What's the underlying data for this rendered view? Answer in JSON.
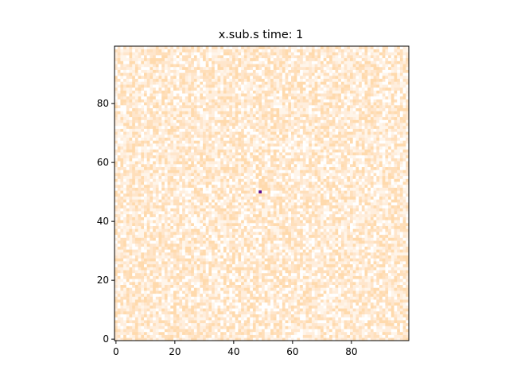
{
  "chart_data": {
    "type": "heatmap",
    "title": "x.sub.s time: 1",
    "xlabel": "",
    "ylabel": "",
    "grid_size": [
      100,
      100
    ],
    "xlim": [
      0,
      99
    ],
    "ylim": [
      0,
      99
    ],
    "origin": "lower",
    "x_ticks": [
      0,
      20,
      40,
      60,
      80
    ],
    "y_ticks": [
      0,
      20,
      40,
      60,
      80
    ],
    "x_tick_labels": [
      "0",
      "20",
      "40",
      "60",
      "80"
    ],
    "y_tick_labels": [
      "0",
      "20",
      "40",
      "60",
      "80"
    ],
    "grid": false,
    "background_field": "random noise in light peach / cream tones",
    "palette": [
      "#ffffff",
      "#fff5ea",
      "#ffeedd",
      "#ffe6cc",
      "#ffdfbb",
      "#ffdaad"
    ],
    "highlight_cells": [
      {
        "x": 49,
        "y": 50,
        "value": "max",
        "color": "#5a0a8a"
      }
    ]
  }
}
